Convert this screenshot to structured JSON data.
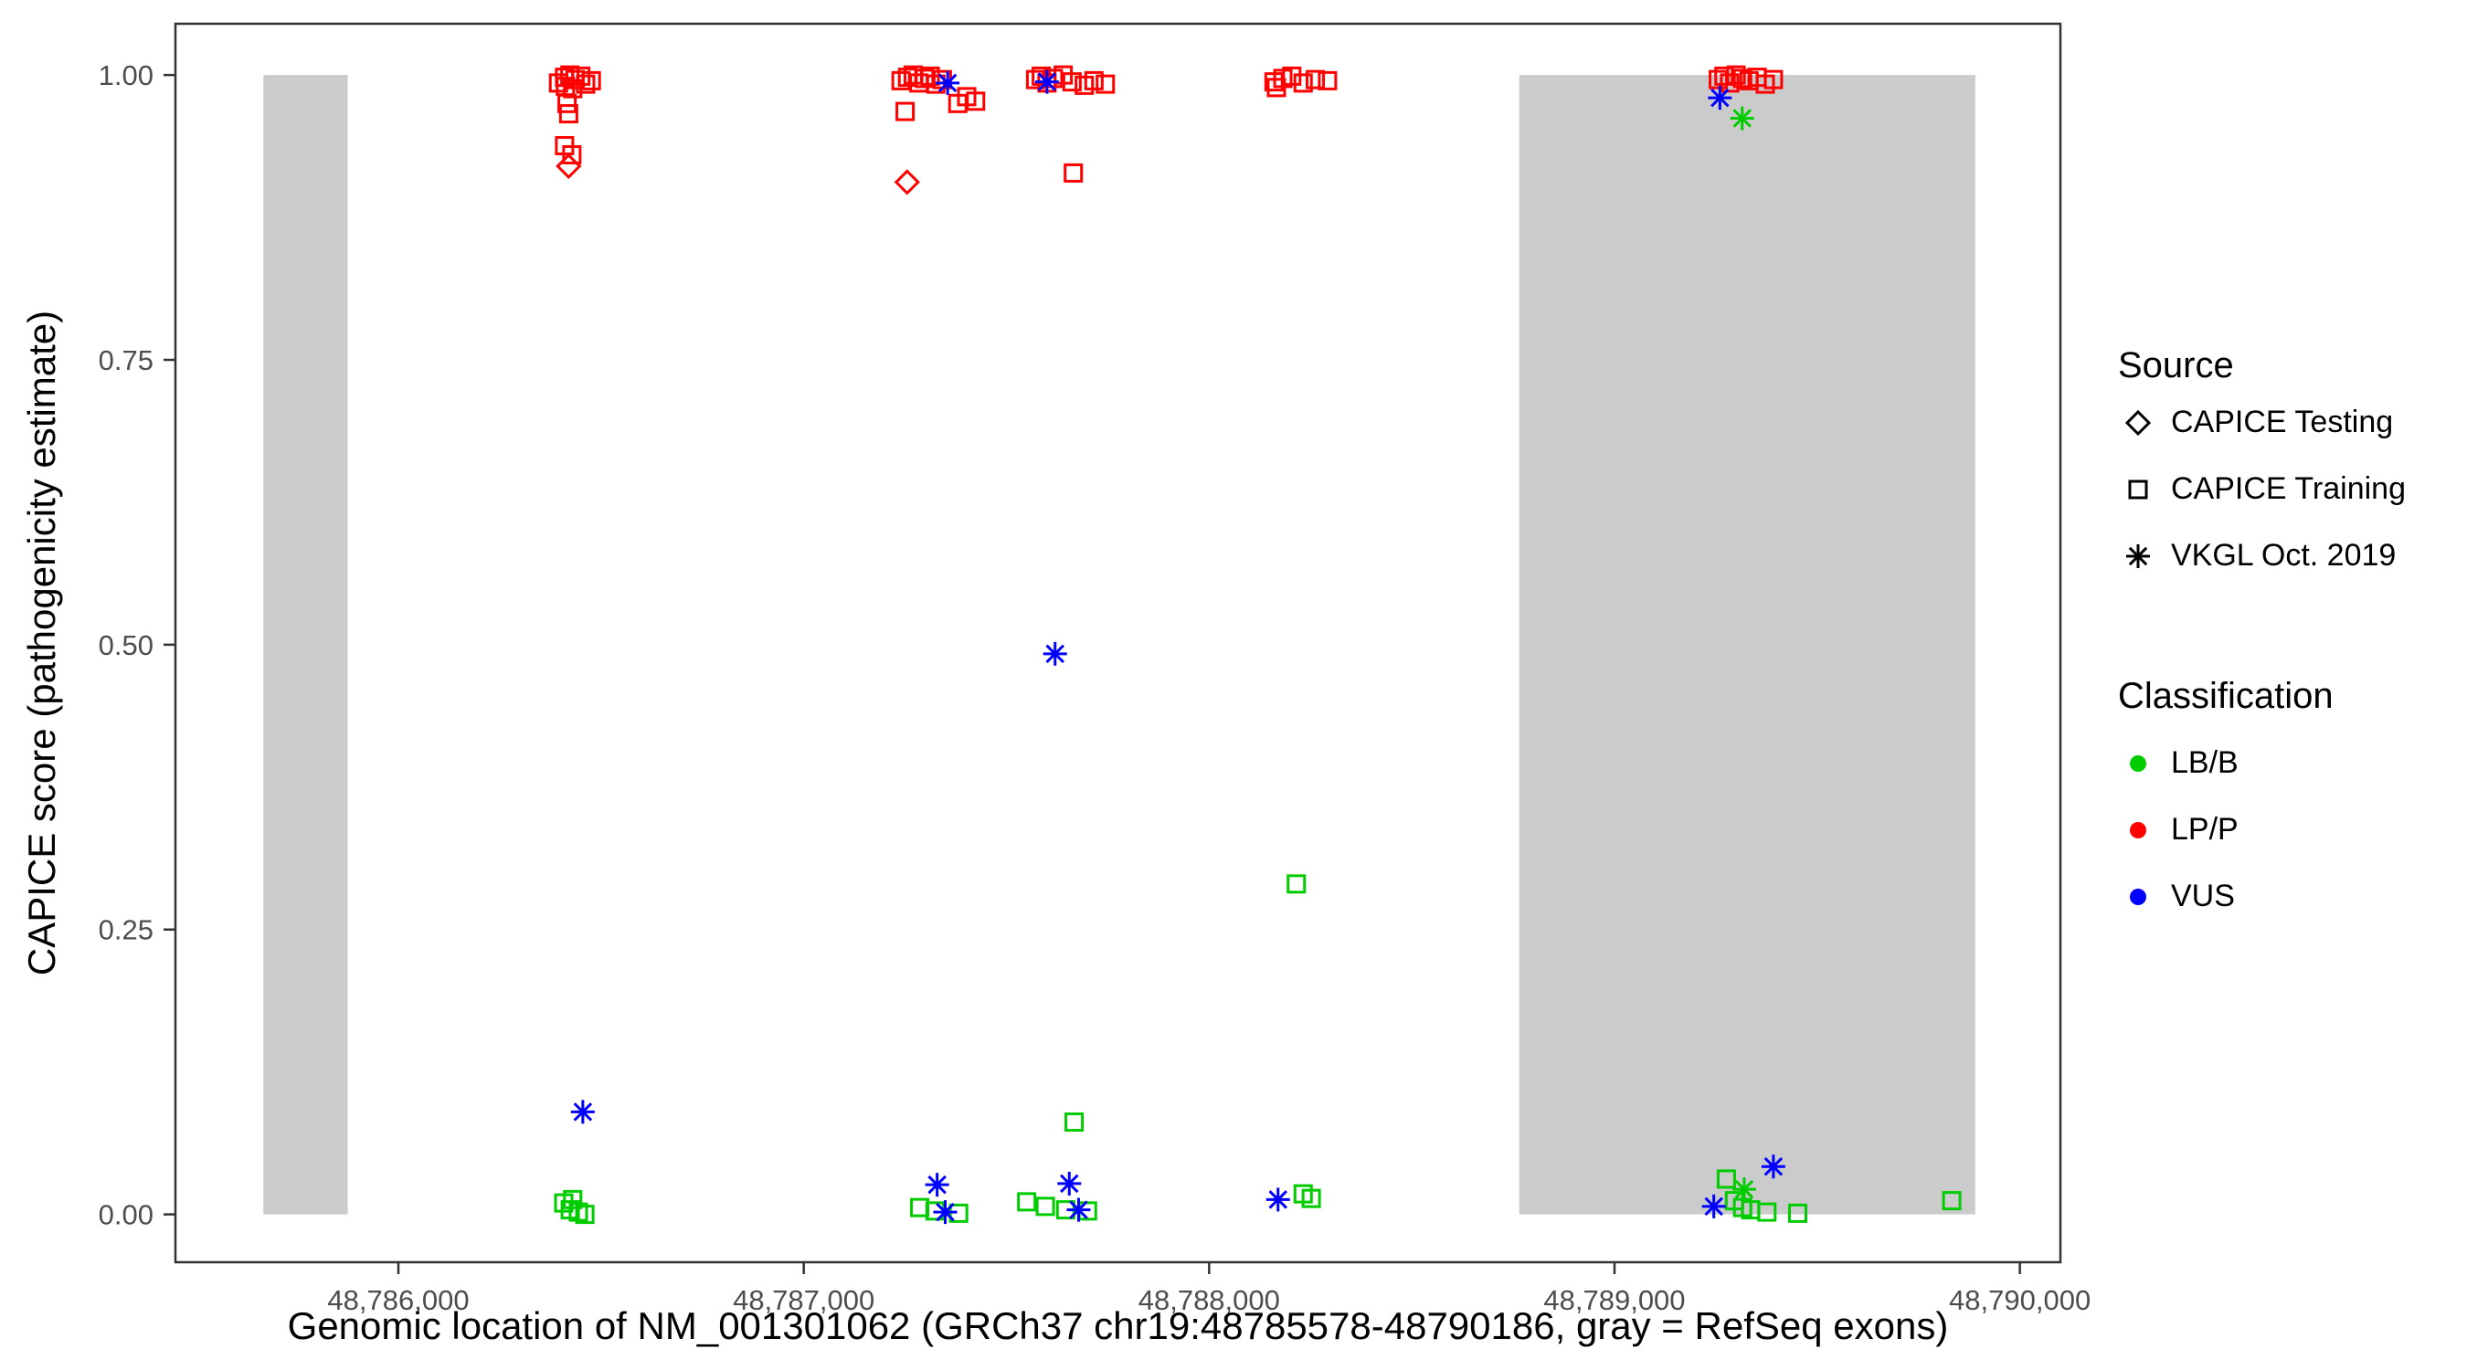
{
  "figure": {
    "x_axis": {
      "title": "Genomic location of NM_001301062 (GRCh37 chr19:48785578-48790186, gray = RefSeq exons)",
      "min": 48785450,
      "max": 48790100,
      "ticks": [
        {
          "value": 48786000,
          "label": "48,786,000"
        },
        {
          "value": 48787000,
          "label": "48,787,000"
        },
        {
          "value": 48788000,
          "label": "48,788,000"
        },
        {
          "value": 48789000,
          "label": "48,789,000"
        },
        {
          "value": 48790000,
          "label": "48,790,000"
        }
      ]
    },
    "y_axis": {
      "title": "CAPICE score (pathogenicity estimate)",
      "min": -0.042,
      "max": 1.045,
      "ticks": [
        {
          "value": 0.0,
          "label": "0.00"
        },
        {
          "value": 0.25,
          "label": "0.25"
        },
        {
          "value": 0.5,
          "label": "0.50"
        },
        {
          "value": 0.75,
          "label": "0.75"
        },
        {
          "value": 1.0,
          "label": "1.00"
        }
      ]
    },
    "exons": [
      {
        "start": 48785667,
        "end": 48785875
      },
      {
        "start": 48788765,
        "end": 48789890
      }
    ],
    "exon_color": "#CBCBCB",
    "panel_border_color": "#333333",
    "tick_label_color": "#4d4d4d"
  },
  "legend": {
    "source": {
      "title": "Source",
      "items": [
        {
          "label": "CAPICE Testing",
          "marker": "diamond",
          "color": "#000000"
        },
        {
          "label": "CAPICE Training",
          "marker": "square",
          "color": "#000000"
        },
        {
          "label": "VKGL Oct. 2019",
          "marker": "asterisk",
          "color": "#000000"
        }
      ]
    },
    "classification": {
      "title": "Classification",
      "items": [
        {
          "label": "LB/B",
          "marker": "circle",
          "color": "#00CC00"
        },
        {
          "label": "LP/P",
          "marker": "circle",
          "color": "#FF0000"
        },
        {
          "label": "VUS",
          "marker": "circle",
          "color": "#0000FF"
        }
      ]
    }
  },
  "chart_data": {
    "type": "scatter",
    "title": "",
    "xlabel": "Genomic location of NM_001301062 (GRCh37 chr19:48785578-48790186, gray = RefSeq exons)",
    "ylabel": "CAPICE score (pathogenicity estimate)",
    "xlim": [
      48785450,
      48790100
    ],
    "ylim": [
      -0.042,
      1.045
    ],
    "gene_region": "chr19:48785578-48790186",
    "shape_by_source": {
      "testing": "diamond",
      "training": "square",
      "vkgl": "asterisk"
    },
    "color_by_classification": {
      "LB/B": "#00CC00",
      "LP/P": "#FF0000",
      "VUS": "#0000FF"
    },
    "point_format": [
      "x",
      "y",
      "source",
      "classification"
    ],
    "points": [
      [
        48786395,
        0.993,
        "training",
        "LP/P"
      ],
      [
        48786410,
        0.998,
        "training",
        "LP/P"
      ],
      [
        48786423,
        1.0,
        "training",
        "LP/P"
      ],
      [
        48786436,
        0.996,
        "training",
        "LP/P"
      ],
      [
        48786450,
        0.999,
        "training",
        "LP/P"
      ],
      [
        48786462,
        0.992,
        "training",
        "LP/P"
      ],
      [
        48786476,
        0.995,
        "training",
        "LP/P"
      ],
      [
        48786430,
        0.988,
        "training",
        "LP/P"
      ],
      [
        48786412,
        0.99,
        "training",
        "LP/P"
      ],
      [
        48786416,
        0.975,
        "training",
        "LP/P"
      ],
      [
        48786420,
        0.966,
        "training",
        "LP/P"
      ],
      [
        48786410,
        0.938,
        "training",
        "LP/P"
      ],
      [
        48786428,
        0.93,
        "training",
        "LP/P"
      ],
      [
        48787240,
        0.995,
        "training",
        "LP/P"
      ],
      [
        48787256,
        0.998,
        "training",
        "LP/P"
      ],
      [
        48787270,
        1.0,
        "training",
        "LP/P"
      ],
      [
        48787284,
        0.993,
        "training",
        "LP/P"
      ],
      [
        48787298,
        0.997,
        "training",
        "LP/P"
      ],
      [
        48787312,
        0.999,
        "training",
        "LP/P"
      ],
      [
        48787326,
        0.992,
        "training",
        "LP/P"
      ],
      [
        48787342,
        0.996,
        "training",
        "LP/P"
      ],
      [
        48787250,
        0.968,
        "training",
        "LP/P"
      ],
      [
        48787380,
        0.975,
        "training",
        "LP/P"
      ],
      [
        48787402,
        0.981,
        "training",
        "LP/P"
      ],
      [
        48787424,
        0.977,
        "training",
        "LP/P"
      ],
      [
        48787572,
        0.996,
        "training",
        "LP/P"
      ],
      [
        48787586,
        0.999,
        "training",
        "LP/P"
      ],
      [
        48787600,
        0.993,
        "training",
        "LP/P"
      ],
      [
        48787616,
        0.997,
        "training",
        "LP/P"
      ],
      [
        48787640,
        1.0,
        "training",
        "LP/P"
      ],
      [
        48787662,
        0.994,
        "training",
        "LP/P"
      ],
      [
        48787692,
        0.991,
        "training",
        "LP/P"
      ],
      [
        48787716,
        0.995,
        "training",
        "LP/P"
      ],
      [
        48787744,
        0.992,
        "training",
        "LP/P"
      ],
      [
        48787665,
        0.914,
        "training",
        "LP/P"
      ],
      [
        48788160,
        0.994,
        "training",
        "LP/P"
      ],
      [
        48788182,
        0.997,
        "training",
        "LP/P"
      ],
      [
        48788204,
        0.999,
        "training",
        "LP/P"
      ],
      [
        48788232,
        0.993,
        "training",
        "LP/P"
      ],
      [
        48788262,
        0.996,
        "training",
        "LP/P"
      ],
      [
        48788292,
        0.995,
        "training",
        "LP/P"
      ],
      [
        48788166,
        0.989,
        "training",
        "LP/P"
      ],
      [
        48789256,
        0.996,
        "training",
        "LP/P"
      ],
      [
        48789270,
        0.999,
        "training",
        "LP/P"
      ],
      [
        48789284,
        0.993,
        "training",
        "LP/P"
      ],
      [
        48789300,
        1.0,
        "training",
        "LP/P"
      ],
      [
        48789316,
        0.997,
        "training",
        "LP/P"
      ],
      [
        48789332,
        0.995,
        "training",
        "LP/P"
      ],
      [
        48789352,
        0.998,
        "training",
        "LP/P"
      ],
      [
        48789372,
        0.992,
        "training",
        "LP/P"
      ],
      [
        48789392,
        0.996,
        "training",
        "LP/P"
      ],
      [
        48786408,
        0.01,
        "training",
        "LB/B"
      ],
      [
        48786424,
        0.004,
        "training",
        "LB/B"
      ],
      [
        48786444,
        0.002,
        "training",
        "LB/B"
      ],
      [
        48786460,
        0.0,
        "training",
        "LB/B"
      ],
      [
        48786430,
        0.013,
        "training",
        "LB/B"
      ],
      [
        48787286,
        0.006,
        "training",
        "LB/B"
      ],
      [
        48787324,
        0.003,
        "training",
        "LB/B"
      ],
      [
        48787382,
        0.001,
        "training",
        "LB/B"
      ],
      [
        48787550,
        0.011,
        "training",
        "LB/B"
      ],
      [
        48787596,
        0.007,
        "training",
        "LB/B"
      ],
      [
        48787646,
        0.004,
        "training",
        "LB/B"
      ],
      [
        48787700,
        0.003,
        "training",
        "LB/B"
      ],
      [
        48787667,
        0.081,
        "training",
        "LB/B"
      ],
      [
        48788215,
        0.29,
        "training",
        "LB/B"
      ],
      [
        48788232,
        0.018,
        "training",
        "LB/B"
      ],
      [
        48788252,
        0.014,
        "training",
        "LB/B"
      ],
      [
        48789276,
        0.031,
        "training",
        "LB/B"
      ],
      [
        48789296,
        0.012,
        "training",
        "LB/B"
      ],
      [
        48789316,
        0.006,
        "training",
        "LB/B"
      ],
      [
        48789336,
        0.004,
        "training",
        "LB/B"
      ],
      [
        48789376,
        0.002,
        "training",
        "LB/B"
      ],
      [
        48789452,
        0.001,
        "training",
        "LB/B"
      ],
      [
        48789832,
        0.012,
        "training",
        "LB/B"
      ],
      [
        48786420,
        0.92,
        "testing",
        "LP/P"
      ],
      [
        48787255,
        0.906,
        "testing",
        "LP/P"
      ],
      [
        48787355,
        0.993,
        "vkgl",
        "VUS"
      ],
      [
        48787600,
        0.994,
        "vkgl",
        "VUS"
      ],
      [
        48789260,
        0.98,
        "vkgl",
        "VUS"
      ],
      [
        48787620,
        0.492,
        "vkgl",
        "VUS"
      ],
      [
        48786455,
        0.09,
        "vkgl",
        "VUS"
      ],
      [
        48787329,
        0.026,
        "vkgl",
        "VUS"
      ],
      [
        48787349,
        0.002,
        "vkgl",
        "VUS"
      ],
      [
        48787655,
        0.027,
        "vkgl",
        "VUS"
      ],
      [
        48787678,
        0.004,
        "vkgl",
        "VUS"
      ],
      [
        48788170,
        0.013,
        "vkgl",
        "VUS"
      ],
      [
        48789245,
        0.007,
        "vkgl",
        "VUS"
      ],
      [
        48789392,
        0.042,
        "vkgl",
        "VUS"
      ],
      [
        48789315,
        0.962,
        "vkgl",
        "LB/B"
      ],
      [
        48789320,
        0.022,
        "vkgl",
        "LB/B"
      ]
    ]
  }
}
